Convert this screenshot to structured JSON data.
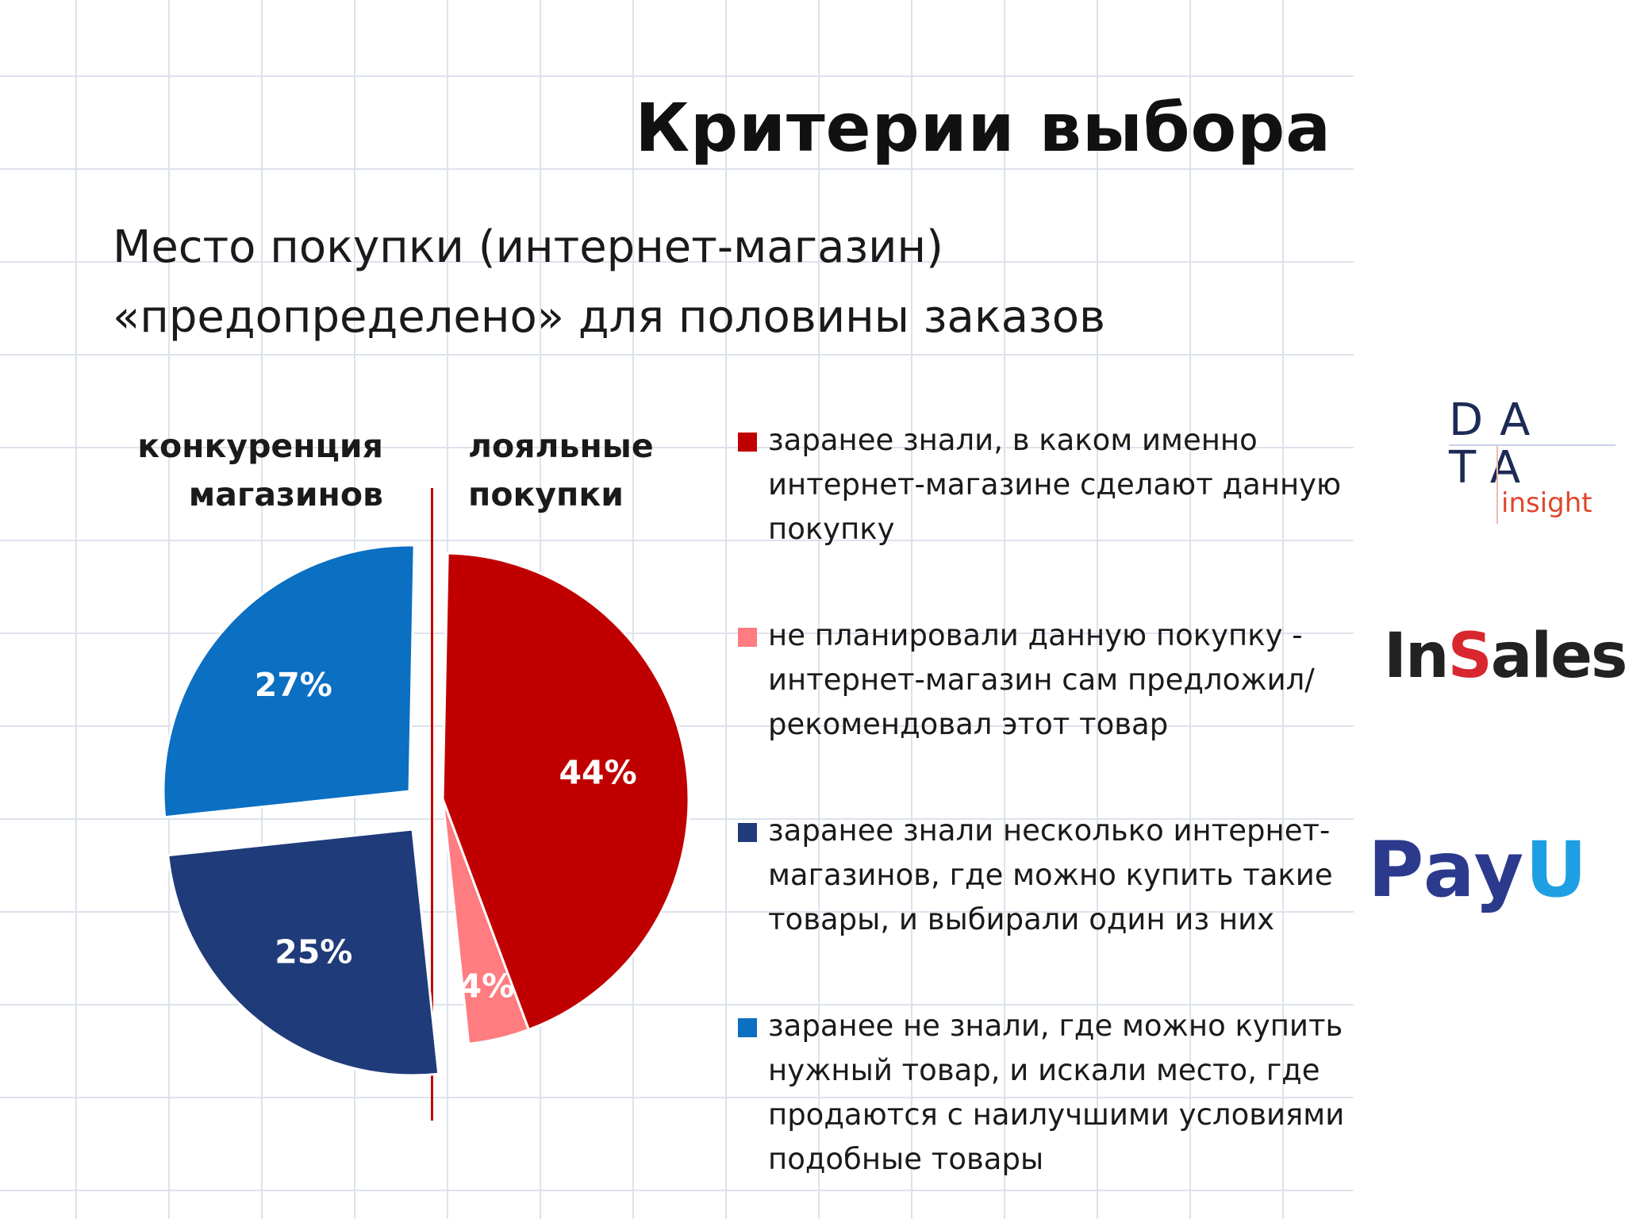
{
  "title": "Критерии выбора",
  "subtitle": {
    "line1": "Место покупки (интернет-магазин)",
    "line2": "«предопределено» для половины заказов"
  },
  "groups": {
    "left": {
      "line1": "конкуренция",
      "line2": "магазинов"
    },
    "right": {
      "line1": "лояльные",
      "line2": "покупки"
    }
  },
  "legend": [
    {
      "text": "заранее знали, в каком именно интернет-магазине сделают данную покупку",
      "color": "#c00000"
    },
    {
      "text": "не планировали данную покупку - интернет-магазин сам предложил/ рекомендовал этот товар",
      "color": "#ff7c80"
    },
    {
      "text": "заранее знали несколько интернет-магазинов, где можно купить такие товары, и выбирали один из них",
      "color": "#1f3b7a"
    },
    {
      "text": "заранее не знали, где можно купить нужный товар, и искали место, где продаются с наилучшими условиями подобные товары",
      "color": "#0b6fc2"
    }
  ],
  "chart_data": {
    "type": "pie",
    "slices": [
      {
        "label": "заранее знали, в каком именно интернет-магазине сделают данную покупку",
        "value": 44,
        "value_label": "44%",
        "color": "#c00000"
      },
      {
        "label": "не планировали данную покупку - интернет-магазин сам предложил/ рекомендовал этот товар",
        "value": 4,
        "value_label": "4%",
        "color": "#ff7c80"
      },
      {
        "label": "заранее знали несколько интернет-магазинов, где можно купить такие товары, и выбирали один из них",
        "value": 25,
        "value_label": "25%",
        "color": "#1f3b7a"
      },
      {
        "label": "заранее не знали, где можно купить нужный товар, и искали место, где продаются с наилучшими условиями подобные товары",
        "value": 27,
        "value_label": "27%",
        "color": "#0b6fc2"
      }
    ],
    "legend_position": "right"
  },
  "logos": {
    "data_insight": {
      "row1": "DA",
      "row2": "TA",
      "word": "insight"
    },
    "insales": {
      "part1": "In",
      "part2": "S",
      "part3": "ales"
    },
    "payu": {
      "part1": "Pay",
      "part2": "U"
    }
  }
}
